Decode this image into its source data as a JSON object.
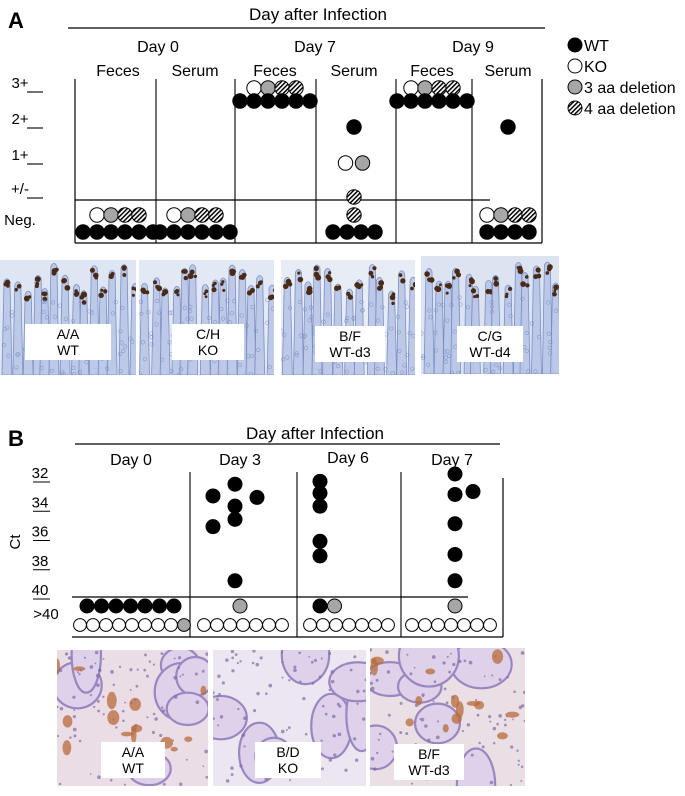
{
  "colors": {
    "WT": "#000000",
    "KO": "#ffffff",
    "aa3": "#a6a6a6",
    "aa4": "hatch",
    "stain_brown": "#4a2a14",
    "stain_blue": "#6f86c2",
    "ihc_brown": "#b86a3a",
    "ihc_purple": "#b8a8d4"
  },
  "panelA": {
    "letter": "A",
    "header": "Day after Infection",
    "legend": [
      {
        "key": "WT",
        "label": "WT",
        "fill": "WT"
      },
      {
        "key": "KO",
        "label": "KO",
        "fill": "KO"
      },
      {
        "key": "aa3",
        "label": "3 aa deletion",
        "fill": "aa3"
      },
      {
        "key": "aa4",
        "label": "4 aa deletion",
        "fill": "aa4"
      }
    ],
    "histology": [
      {
        "line1": "A/A",
        "line2": "WT",
        "icon": "duodenum-histology-image"
      },
      {
        "line1": "C/H",
        "line2": "KO",
        "icon": "duodenum-histology-image"
      },
      {
        "line1": "B/F",
        "line2": "WT-d3",
        "icon": "duodenum-histology-image"
      },
      {
        "line1": "C/G",
        "line2": "WT-d4",
        "icon": "duodenum-histology-image"
      }
    ]
  },
  "panelB": {
    "letter": "B",
    "header": "Day after Infection",
    "histology": [
      {
        "line1": "A/A",
        "line2": "WT",
        "icon": "ihc-image"
      },
      {
        "line1": "B/D",
        "line2": "KO",
        "icon": "ihc-image"
      },
      {
        "line1": "B/F",
        "line2": "WT-d3",
        "icon": "ihc-image"
      }
    ]
  },
  "chart_data": [
    {
      "type": "scatter",
      "title": "Day after Infection",
      "ylabel": "",
      "y_categories": [
        "Neg.",
        "+/-",
        "1+",
        "2+",
        "3+"
      ],
      "days": [
        "Day 0",
        "Day 7",
        "Day 9"
      ],
      "samples": [
        "Feces",
        "Serum"
      ],
      "groups": [
        {
          "day": "Day 0",
          "sample": "Feces",
          "points": [
            {
              "level": "Neg.",
              "WT": 6,
              "KO": 1,
              "aa3": 1,
              "aa4": 2
            }
          ]
        },
        {
          "day": "Day 0",
          "sample": "Serum",
          "points": [
            {
              "level": "Neg.",
              "WT": 6,
              "KO": 1,
              "aa3": 1,
              "aa4": 2
            }
          ]
        },
        {
          "day": "Day 7",
          "sample": "Feces",
          "points": [
            {
              "level": "3+",
              "WT": 6,
              "KO": 1,
              "aa3": 1,
              "aa4": 2
            }
          ]
        },
        {
          "day": "Day 7",
          "sample": "Serum",
          "points": [
            {
              "level": "2+",
              "WT": 1
            },
            {
              "level": "1+",
              "KO": 1,
              "aa3": 1
            },
            {
              "level": "+/-",
              "aa4": 1
            },
            {
              "level": "Neg.",
              "WT": 4,
              "aa4": 1
            }
          ]
        },
        {
          "day": "Day 9",
          "sample": "Feces",
          "points": [
            {
              "level": "3+",
              "WT": 6,
              "KO": 1,
              "aa3": 1,
              "aa4": 2
            }
          ]
        },
        {
          "day": "Day 9",
          "sample": "Serum",
          "points": [
            {
              "level": "2+",
              "WT": 1
            },
            {
              "level": "Neg.",
              "WT": 4,
              "KO": 1,
              "aa3": 1,
              "aa4": 2
            }
          ]
        }
      ]
    },
    {
      "type": "scatter",
      "title": "Day after Infection",
      "ylabel": "Ct",
      "yticks": [
        "32",
        "34",
        "36",
        "38",
        "40",
        ">40"
      ],
      "ylim": [
        31,
        41
      ],
      "days": [
        "Day 0",
        "Day 3",
        "Day 6",
        "Day 7"
      ],
      "groups": [
        {
          "day": "Day 0",
          "positive": [],
          "at40": {
            "WT": 7,
            "aa3": 0
          },
          "neg": {
            "KO": 8,
            "aa3": 1
          }
        },
        {
          "day": "Day 3",
          "positive": [
            {
              "ct": 33.5,
              "col": 0
            },
            {
              "ct": 32.7,
              "col": 1
            },
            {
              "ct": 33.6,
              "col": 2
            },
            {
              "ct": 34.2,
              "col": 1
            },
            {
              "ct": 35.1,
              "col": 1
            },
            {
              "ct": 35.6,
              "col": 0
            },
            {
              "ct": 39.3,
              "col": 1
            }
          ],
          "at40": {
            "WT": 0,
            "aa3": 1
          },
          "neg": {
            "KO": 7,
            "aa3": 0
          }
        },
        {
          "day": "Day 6",
          "positive": [
            {
              "ct": 32.5,
              "col": 0
            },
            {
              "ct": 33.3,
              "col": 0
            },
            {
              "ct": 34.2,
              "col": 0
            },
            {
              "ct": 36.6,
              "col": 0
            },
            {
              "ct": 37.6,
              "col": 0
            }
          ],
          "at40": {
            "WT": 1,
            "aa3": 1
          },
          "neg": {
            "KO": 7,
            "aa3": 0
          }
        },
        {
          "day": "Day 7",
          "positive": [
            {
              "ct": 32.0,
              "col": 0
            },
            {
              "ct": 33.4,
              "col": 0
            },
            {
              "ct": 33.2,
              "col": 1
            },
            {
              "ct": 35.4,
              "col": 0
            },
            {
              "ct": 37.5,
              "col": 0
            },
            {
              "ct": 39.3,
              "col": 0
            }
          ],
          "at40": {
            "WT": 0,
            "aa3": 1
          },
          "neg": {
            "KO": 7,
            "aa3": 0
          }
        }
      ]
    }
  ]
}
